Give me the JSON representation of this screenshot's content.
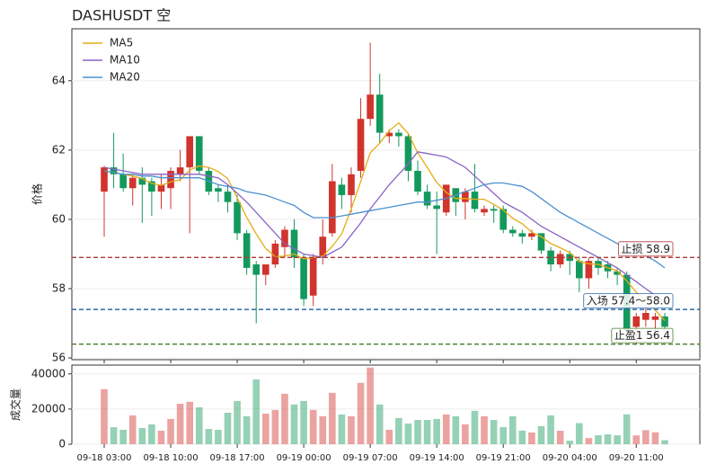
{
  "chart_data": {
    "type": "candlestick",
    "title": "DASHUSDT  空",
    "ylabel": "价格",
    "x": [
      "09-18 03:00",
      "09-18 04:00",
      "09-18 05:00",
      "09-18 06:00",
      "09-18 07:00",
      "09-18 08:00",
      "09-18 09:00",
      "09-18 10:00",
      "09-18 11:00",
      "09-18 12:00",
      "09-18 13:00",
      "09-18 14:00",
      "09-18 15:00",
      "09-18 16:00",
      "09-18 17:00",
      "09-18 18:00",
      "09-18 19:00",
      "09-18 20:00",
      "09-18 21:00",
      "09-18 22:00",
      "09-18 23:00",
      "09-19 00:00",
      "09-19 01:00",
      "09-19 02:00",
      "09-19 03:00",
      "09-19 04:00",
      "09-19 05:00",
      "09-19 06:00",
      "09-19 07:00",
      "09-19 08:00",
      "09-19 09:00",
      "09-19 10:00",
      "09-19 11:00",
      "09-19 12:00",
      "09-19 13:00",
      "09-19 14:00",
      "09-19 15:00",
      "09-19 16:00",
      "09-19 17:00",
      "09-19 18:00",
      "09-19 19:00",
      "09-19 20:00",
      "09-19 21:00",
      "09-19 22:00",
      "09-19 23:00",
      "09-20 00:00",
      "09-20 01:00",
      "09-20 02:00",
      "09-20 03:00",
      "09-20 04:00",
      "09-20 05:00",
      "09-20 06:00",
      "09-20 07:00",
      "09-20 08:00",
      "09-20 09:00",
      "09-20 10:00",
      "09-20 11:00",
      "09-20 12:00",
      "09-20 13:00",
      "09-20 14:00"
    ],
    "xticks": [
      "09-18 03:00",
      "09-18 10:00",
      "09-18 17:00",
      "09-19 00:00",
      "09-19 07:00",
      "09-19 14:00",
      "09-19 21:00",
      "09-20 04:00",
      "09-20 11:00"
    ],
    "open": [
      60.8,
      61.5,
      61.3,
      60.9,
      61.2,
      61.1,
      60.8,
      60.9,
      61.3,
      61.5,
      62.4,
      61.4,
      60.9,
      60.8,
      60.5,
      59.6,
      58.7,
      58.4,
      58.7,
      59.2,
      59.7,
      58.9,
      57.8,
      58.9,
      59.6,
      61.0,
      60.7,
      61.4,
      62.9,
      63.6,
      62.4,
      62.5,
      62.4,
      61.4,
      60.8,
      60.4,
      60.2,
      60.9,
      60.5,
      60.8,
      60.2,
      60.3,
      60.3,
      59.7,
      59.6,
      59.5,
      59.6,
      59.1,
      58.7,
      59.0,
      58.8,
      58.3,
      58.8,
      58.7,
      58.5,
      58.4,
      56.9,
      57.1,
      57.1,
      57.2
    ],
    "high": [
      61.55,
      62.5,
      61.9,
      61.3,
      61.5,
      61.2,
      61.3,
      61.5,
      62.0,
      62.4,
      62.4,
      61.5,
      61.0,
      61.0,
      60.7,
      59.7,
      58.8,
      58.7,
      59.4,
      59.8,
      60.0,
      59.0,
      59.0,
      60.0,
      61.6,
      61.2,
      61.5,
      63.5,
      65.1,
      64.2,
      62.6,
      62.6,
      62.5,
      61.7,
      61.0,
      60.8,
      61.0,
      60.9,
      60.9,
      61.6,
      60.4,
      60.4,
      60.4,
      59.8,
      59.7,
      59.7,
      59.6,
      59.2,
      59.1,
      59.1,
      58.9,
      58.9,
      58.9,
      58.8,
      58.6,
      58.5,
      57.3,
      57.5,
      57.3,
      57.3
    ],
    "low": [
      59.5,
      60.9,
      60.8,
      60.4,
      59.9,
      60.1,
      60.3,
      60.3,
      61.1,
      59.6,
      61.3,
      60.7,
      60.5,
      60.2,
      59.4,
      58.4,
      57.0,
      58.1,
      58.6,
      58.9,
      58.6,
      57.5,
      57.5,
      58.7,
      59.5,
      60.3,
      60.2,
      61.2,
      62.7,
      62.2,
      62.2,
      62.1,
      61.1,
      60.7,
      60.3,
      59.0,
      60.1,
      60.1,
      60.0,
      60.2,
      60.1,
      59.9,
      59.6,
      59.5,
      59.3,
      59.4,
      59.0,
      58.5,
      58.6,
      58.4,
      57.9,
      58.0,
      58.4,
      58.3,
      58.1,
      56.6,
      56.4,
      56.9,
      56.7,
      56.7
    ],
    "close": [
      61.5,
      61.3,
      60.9,
      61.2,
      61.0,
      60.8,
      61.0,
      61.4,
      61.5,
      62.4,
      61.4,
      60.8,
      60.8,
      60.5,
      59.6,
      58.6,
      58.4,
      58.7,
      59.3,
      59.7,
      58.9,
      57.7,
      58.9,
      59.5,
      61.1,
      60.7,
      61.3,
      62.9,
      63.6,
      62.5,
      62.5,
      62.4,
      61.4,
      60.8,
      60.4,
      60.3,
      61.0,
      60.5,
      60.8,
      60.3,
      60.3,
      60.25,
      59.7,
      59.6,
      59.5,
      59.6,
      59.1,
      58.7,
      59.0,
      58.8,
      58.3,
      58.8,
      58.6,
      58.5,
      58.4,
      56.8,
      57.2,
      57.3,
      57.2,
      56.9
    ],
    "up_color": "#d0342c",
    "down_color": "#14995c",
    "ylim": [
      55.95,
      65.5
    ],
    "yticks": [
      56,
      58,
      60,
      62,
      64
    ],
    "grid": true,
    "legend": "upper left",
    "series": [
      {
        "name": "MA5",
        "color": "#e6ac17",
        "values": [
          61.4,
          61.35,
          61.3,
          61.25,
          61.18,
          61.04,
          60.98,
          61.08,
          61.14,
          61.42,
          61.54,
          61.5,
          61.38,
          61.18,
          60.62,
          60.06,
          59.58,
          59.16,
          58.92,
          58.94,
          59.0,
          58.86,
          58.9,
          58.94,
          59.22,
          59.58,
          60.3,
          61.1,
          61.92,
          62.2,
          62.56,
          62.78,
          62.48,
          61.92,
          61.5,
          61.06,
          60.78,
          60.6,
          60.6,
          60.58,
          60.58,
          60.43,
          60.27,
          60.03,
          59.87,
          59.63,
          59.5,
          59.3,
          59.18,
          59.04,
          58.78,
          58.72,
          58.7,
          58.6,
          58.52,
          58.22,
          57.9,
          57.64,
          57.38,
          57.08
        ]
      },
      {
        "name": "MA10",
        "color": "#8a63c4",
        "values": [
          61.5,
          61.45,
          61.4,
          61.35,
          61.3,
          61.3,
          61.3,
          61.3,
          61.3,
          61.3,
          61.3,
          61.25,
          61.2,
          61.0,
          60.75,
          60.5,
          60.2,
          59.9,
          59.6,
          59.3,
          59.15,
          59.0,
          58.95,
          58.9,
          59.05,
          59.2,
          59.55,
          59.9,
          60.3,
          60.65,
          61.0,
          61.3,
          61.6,
          61.95,
          61.9,
          61.85,
          61.8,
          61.65,
          61.5,
          61.25,
          61.0,
          60.75,
          60.5,
          60.35,
          60.2,
          60.0,
          59.8,
          59.65,
          59.5,
          59.35,
          59.2,
          59.05,
          58.9,
          58.75,
          58.6,
          58.4,
          58.2,
          58.0,
          57.8,
          57.6
        ]
      },
      {
        "name": "MA20",
        "color": "#4a90d0",
        "values": [
          61.4,
          61.35,
          61.3,
          61.3,
          61.25,
          61.25,
          61.2,
          61.2,
          61.2,
          61.2,
          61.2,
          61.1,
          61.0,
          60.95,
          60.9,
          60.8,
          60.75,
          60.7,
          60.6,
          60.5,
          60.4,
          60.2,
          60.05,
          60.05,
          60.05,
          60.1,
          60.15,
          60.2,
          60.25,
          60.3,
          60.35,
          60.4,
          60.45,
          60.5,
          60.5,
          60.55,
          60.6,
          60.7,
          60.8,
          60.9,
          61.0,
          61.05,
          61.05,
          61.0,
          60.95,
          60.8,
          60.6,
          60.4,
          60.2,
          60.05,
          59.9,
          59.75,
          59.6,
          59.45,
          59.3,
          59.2,
          59.1,
          58.95,
          58.8,
          58.6
        ]
      }
    ],
    "hlines": [
      {
        "label": "止损 58.9",
        "value": 58.9,
        "color": "#b03a3a"
      },
      {
        "label": "入场 57.4～58.0",
        "value": 57.4,
        "color": "#2a6aa8"
      },
      {
        "label": "止盈1 56.4",
        "value": 56.4,
        "color": "#4a7a2a"
      }
    ],
    "volume": {
      "ylabel": "成交量",
      "ylim": [
        0,
        45000
      ],
      "yticks": [
        0,
        20000,
        40000
      ],
      "values": [
        31300,
        9700,
        8200,
        16400,
        9200,
        11300,
        7700,
        14400,
        23000,
        24100,
        21000,
        8700,
        8200,
        17900,
        24600,
        15900,
        36900,
        17400,
        19500,
        28700,
        22600,
        24600,
        19500,
        15900,
        29200,
        16900,
        15900,
        34900,
        43600,
        22600,
        8200,
        14900,
        11800,
        13800,
        13800,
        14400,
        16900,
        15900,
        11300,
        19000,
        15900,
        13800,
        9700,
        15900,
        7700,
        6700,
        10300,
        16400,
        7700,
        2000,
        12000,
        3500,
        5100,
        5600,
        5100,
        17000,
        5000,
        8000,
        6800,
        2300
      ]
    }
  }
}
